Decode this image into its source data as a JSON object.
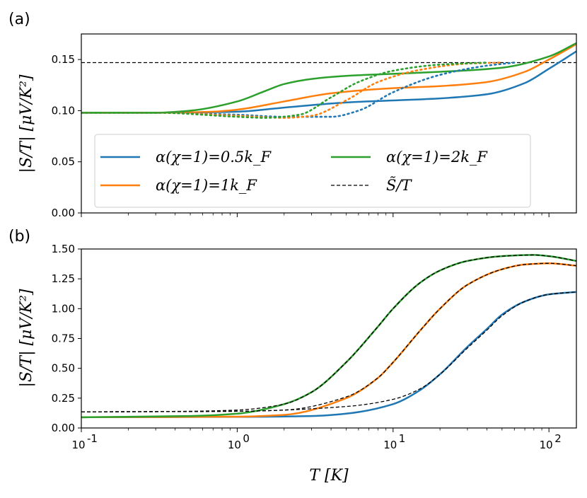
{
  "chart_data": [
    {
      "panel": "(a)",
      "type": "line",
      "xscale": "log",
      "xlim": [
        0.1,
        150
      ],
      "ylim": [
        0.0,
        0.175
      ],
      "yticks": [
        "0.00",
        "0.05",
        "0.10",
        "0.15"
      ],
      "ylabel": "|S/T| [μV/K²]",
      "reference_line": {
        "name": "S̃/T",
        "value": 0.147,
        "style": "dashed",
        "color": "#000000"
      },
      "legend": {
        "placement": "lower-right",
        "entries": [
          {
            "label": "α(χ=1)=0.5k_F",
            "color": "#1f77b4",
            "style": "solid"
          },
          {
            "label": "α(χ=1)=1k_F",
            "color": "#ff7f0e",
            "style": "solid"
          },
          {
            "label": "α(χ=1)=2k_F",
            "color": "#2ca02c",
            "style": "solid"
          },
          {
            "label": "S̃/T",
            "color": "#000000",
            "style": "dashed"
          }
        ]
      },
      "series": [
        {
          "name": "α(χ=1)=0.5k_F",
          "color": "#1f77b4",
          "style": "solid",
          "x": [
            0.1,
            0.3,
            1,
            2,
            5,
            10,
            20,
            40,
            70,
            100,
            150
          ],
          "y": [
            0.098,
            0.098,
            0.099,
            0.103,
            0.108,
            0.11,
            0.112,
            0.116,
            0.127,
            0.141,
            0.158
          ]
        },
        {
          "name": "α(χ=1)=1k_F",
          "color": "#ff7f0e",
          "style": "solid",
          "x": [
            0.1,
            0.3,
            0.7,
            1,
            2,
            4,
            10,
            20,
            40,
            70,
            100,
            150
          ],
          "y": [
            0.098,
            0.098,
            0.099,
            0.101,
            0.109,
            0.117,
            0.122,
            0.124,
            0.128,
            0.138,
            0.15,
            0.165
          ]
        },
        {
          "name": "α(χ=1)=2k_F",
          "color": "#2ca02c",
          "style": "solid",
          "x": [
            0.1,
            0.3,
            0.5,
            1,
            1.5,
            2,
            3,
            5,
            10,
            20,
            50,
            100,
            150
          ],
          "y": [
            0.098,
            0.098,
            0.1,
            0.109,
            0.119,
            0.126,
            0.131,
            0.134,
            0.136,
            0.138,
            0.142,
            0.153,
            0.166
          ]
        },
        {
          "name": "α(χ=1)=0.5k_F (dotted)",
          "color": "#1f77b4",
          "style": "dotted",
          "x": [
            0.1,
            0.3,
            1,
            2,
            4,
            6,
            10,
            20,
            40,
            60
          ],
          "y": [
            0.098,
            0.098,
            0.096,
            0.094,
            0.094,
            0.1,
            0.118,
            0.135,
            0.144,
            0.147
          ]
        },
        {
          "name": "α(χ=1)=1k_F (dotted)",
          "color": "#ff7f0e",
          "style": "dotted",
          "x": [
            0.1,
            0.3,
            1,
            2,
            3,
            5,
            8,
            15,
            30,
            50
          ],
          "y": [
            0.098,
            0.098,
            0.095,
            0.093,
            0.095,
            0.11,
            0.128,
            0.14,
            0.146,
            0.147
          ]
        },
        {
          "name": "α(χ=1)=2k_F (dotted)",
          "color": "#2ca02c",
          "style": "dotted",
          "x": [
            0.1,
            0.3,
            1,
            1.5,
            2.5,
            4,
            6,
            10,
            20,
            40
          ],
          "y": [
            0.098,
            0.098,
            0.094,
            0.093,
            0.096,
            0.113,
            0.128,
            0.139,
            0.145,
            0.147
          ]
        }
      ]
    },
    {
      "panel": "(b)",
      "type": "line",
      "xscale": "log",
      "xlim": [
        0.1,
        150
      ],
      "ylim": [
        0.0,
        1.5
      ],
      "xticks": [
        "10",
        "10",
        "10",
        "10"
      ],
      "xtick_exponents": [
        "-1",
        "0",
        "1",
        "2"
      ],
      "yticks": [
        "0.00",
        "0.25",
        "0.50",
        "0.75",
        "1.00",
        "1.25",
        "1.50"
      ],
      "xlabel": "T [K]",
      "ylabel": "|S/T| [μV/K²]",
      "series": [
        {
          "name": "α(χ=1)=0.5k_F",
          "color": "#1f77b4",
          "style": "solid",
          "x": [
            0.1,
            1,
            3,
            5,
            10,
            15,
            20,
            30,
            40,
            50,
            70,
            100,
            150
          ],
          "y": [
            0.09,
            0.093,
            0.1,
            0.12,
            0.2,
            0.32,
            0.45,
            0.68,
            0.83,
            0.95,
            1.06,
            1.12,
            1.14
          ]
        },
        {
          "name": "α(χ=1)=1k_F",
          "color": "#ff7f0e",
          "style": "solid",
          "x": [
            0.1,
            1,
            2,
            5,
            8,
            10,
            15,
            20,
            30,
            50,
            70,
            100,
            150
          ],
          "y": [
            0.09,
            0.095,
            0.11,
            0.25,
            0.42,
            0.55,
            0.82,
            1.0,
            1.2,
            1.33,
            1.37,
            1.38,
            1.36
          ]
        },
        {
          "name": "α(χ=1)=2k_F",
          "color": "#2ca02c",
          "style": "solid",
          "x": [
            0.1,
            0.5,
            1,
            2,
            3,
            5,
            8,
            10,
            15,
            20,
            30,
            50,
            80,
            100,
            150
          ],
          "y": [
            0.09,
            0.1,
            0.12,
            0.2,
            0.3,
            0.55,
            0.85,
            1.0,
            1.22,
            1.32,
            1.4,
            1.44,
            1.45,
            1.44,
            1.4
          ]
        },
        {
          "name": "S̃/T (0.5k_F)",
          "color": "#000000",
          "style": "dashed",
          "x": [
            0.1,
            1,
            5,
            10,
            15,
            20,
            30,
            40,
            50,
            70,
            100,
            150
          ],
          "y": [
            0.135,
            0.14,
            0.18,
            0.24,
            0.33,
            0.45,
            0.67,
            0.82,
            0.94,
            1.06,
            1.12,
            1.14
          ]
        },
        {
          "name": "S̃/T (1k_F)",
          "color": "#000000",
          "style": "dashed",
          "x": [
            0.1,
            1,
            2,
            5,
            8,
            10,
            15,
            20,
            30,
            50,
            70,
            100,
            150
          ],
          "y": [
            0.135,
            0.14,
            0.15,
            0.26,
            0.42,
            0.55,
            0.82,
            1.0,
            1.2,
            1.33,
            1.37,
            1.38,
            1.36
          ]
        },
        {
          "name": "S̃/T (2k_F)",
          "color": "#000000",
          "style": "dashed",
          "x": [
            0.1,
            0.5,
            1,
            2,
            3,
            5,
            8,
            10,
            15,
            20,
            30,
            50,
            80,
            100,
            150
          ],
          "y": [
            0.135,
            0.14,
            0.15,
            0.2,
            0.3,
            0.55,
            0.85,
            1.0,
            1.22,
            1.32,
            1.4,
            1.44,
            1.45,
            1.44,
            1.4
          ]
        }
      ]
    }
  ],
  "labels": {
    "panel_a": "(a)",
    "panel_b": "(b)",
    "ylabel_a": "|S/T| [μV/K²]",
    "ylabel_b": "|S/T| [μV/K²]",
    "xlabel": "T [K]"
  }
}
